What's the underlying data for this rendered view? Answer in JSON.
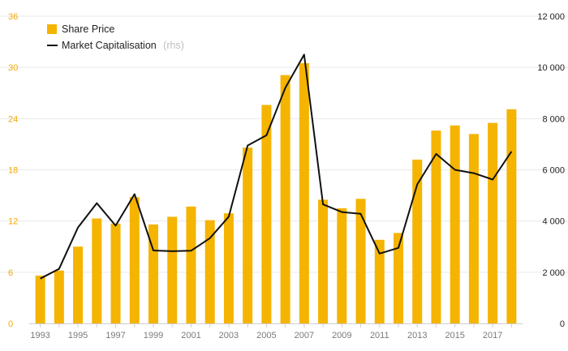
{
  "chart_data": {
    "type": "bar",
    "categories": [
      "1993",
      "1994",
      "1995",
      "1996",
      "1997",
      "1998",
      "1999",
      "2000",
      "2001",
      "2002",
      "2003",
      "2004",
      "2005",
      "2006",
      "2007",
      "2008",
      "2009",
      "2010",
      "2011",
      "2012",
      "2013",
      "2014",
      "2015",
      "2016",
      "2017",
      "2018"
    ],
    "x_tick_labels": [
      "1993",
      "1995",
      "1997",
      "1999",
      "2001",
      "2003",
      "2005",
      "2007",
      "2009",
      "2011",
      "2013",
      "2015",
      "2017"
    ],
    "series": [
      {
        "name": "Share Price",
        "kind": "bar",
        "axis": "left",
        "color": "#f5b400",
        "values": [
          5.6,
          6.2,
          9.0,
          12.3,
          11.7,
          14.8,
          11.6,
          12.5,
          13.7,
          12.1,
          12.9,
          20.6,
          25.6,
          29.1,
          30.5,
          14.5,
          13.5,
          14.6,
          9.8,
          10.6,
          19.2,
          22.6,
          23.2,
          22.2,
          23.5,
          25.1
        ]
      },
      {
        "name": "Market Capitalisation",
        "name_suffix": "(rhs)",
        "kind": "line",
        "axis": "right",
        "color": "#111111",
        "values": [
          1750,
          2130,
          3750,
          4700,
          3820,
          5050,
          2850,
          2820,
          2840,
          3330,
          4170,
          6950,
          7350,
          9200,
          10500,
          4650,
          4350,
          4280,
          2730,
          2950,
          5430,
          6620,
          6000,
          5870,
          5620,
          6720
        ]
      }
    ],
    "y_left": {
      "ticks": [
        "0",
        "6",
        "12",
        "18",
        "24",
        "30",
        "36"
      ],
      "ylim": [
        0,
        36
      ],
      "color": "#f5a800"
    },
    "y_right": {
      "ticks": [
        "0",
        "2 000",
        "4 000",
        "6 000",
        "8 000",
        "10 000",
        "12 000"
      ],
      "ylim": [
        0,
        12000
      ]
    },
    "grid": true,
    "legend_position": "top-left"
  }
}
